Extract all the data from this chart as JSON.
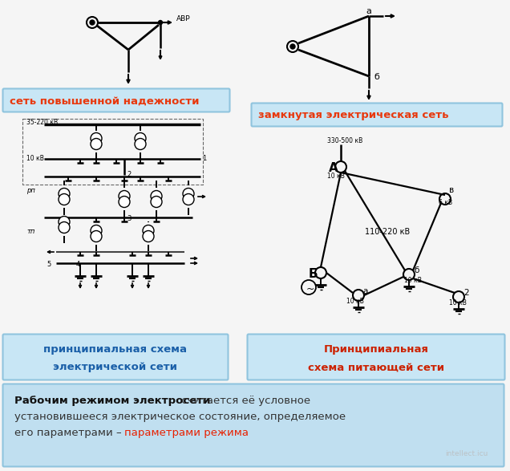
{
  "bg_color": "#f5f5f5",
  "box_bg_top": "#c8e6f5",
  "box_bg_bottom": "#b8e0f5",
  "box_border": "#90c4de",
  "label1": "сеть повышенной надежности",
  "label2": "замкнутая электрическая сеть",
  "label3_line1": "принципиальная схема",
  "label3_line2": "электрической сети",
  "label4_line1": "Принципиальная",
  "label4_line2": "схема питающей сети",
  "label_red_color": "#e8380d",
  "label_blue_color": "#1a5fa8",
  "label4_red_color": "#cc2200",
  "bottom_bold": "Рабочим режимом электросети",
  "bottom_normal1": " считается её условное",
  "bottom_normal2": "установившееся электрическое состояние, определяемое",
  "bottom_normal3": "его параметрами – ",
  "bottom_red": "параметрами режима",
  "text_dark": "#222222",
  "red_color": "#e82000",
  "watermark": "intellect.icu"
}
